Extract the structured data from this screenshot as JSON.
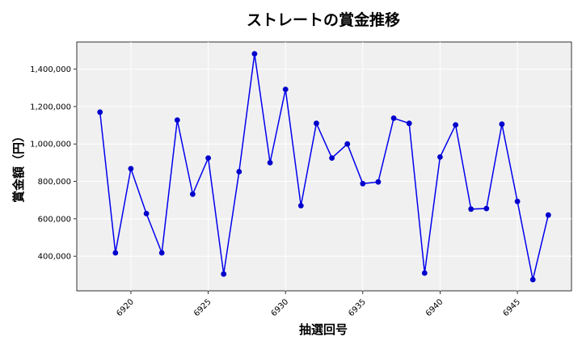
{
  "chart_data": {
    "type": "line",
    "title": "ストレートの賞金推移",
    "xlabel": "抽選回号",
    "ylabel": "賞金額（円）",
    "x": [
      6918,
      6919,
      6920,
      6921,
      6922,
      6923,
      6924,
      6925,
      6926,
      6927,
      6928,
      6929,
      6930,
      6931,
      6932,
      6933,
      6934,
      6935,
      6936,
      6937,
      6938,
      6939,
      6940,
      6941,
      6942,
      6943,
      6944,
      6945,
      6946,
      6947
    ],
    "series": [
      {
        "values": [
          1170000,
          418000,
          868000,
          628000,
          418000,
          1128000,
          732000,
          925000,
          305000,
          852000,
          1482000,
          900000,
          1292000,
          670000,
          1110000,
          925000,
          1000000,
          788000,
          797000,
          1138000,
          1110000,
          310000,
          930000,
          1102000,
          652000,
          655000,
          1106000,
          693000,
          275000,
          620000
        ]
      }
    ],
    "x_ticks": [
      6920,
      6925,
      6930,
      6935,
      6940,
      6945
    ],
    "y_ticks": [
      400000,
      600000,
      800000,
      1000000,
      1200000,
      1400000
    ],
    "y_tick_labels": [
      "400,000",
      "600,000",
      "800,000",
      "1,000,000",
      "1,200,000",
      "1,400,000"
    ],
    "xlim": [
      6916.5,
      6948.5
    ],
    "ylim": [
      215000,
      1545000
    ],
    "grid": true,
    "colors": {
      "line": "#0000ee",
      "marker": "#0000cc",
      "background": "#f0f0f0",
      "grid": "#ffffff"
    }
  }
}
